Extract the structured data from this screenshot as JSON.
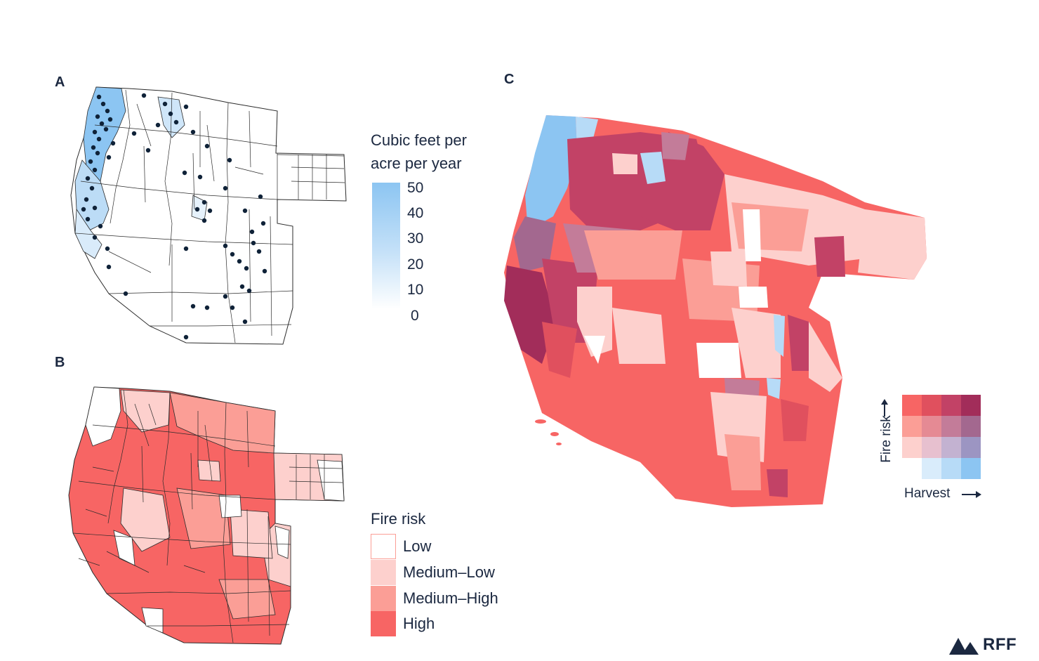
{
  "panels": {
    "a": {
      "label": "A"
    },
    "b": {
      "label": "B"
    },
    "c": {
      "label": "C"
    }
  },
  "harvest_legend": {
    "title_line1": "Cubic feet per",
    "title_line2": "acre per year",
    "ticks": [
      "50",
      "40",
      "30",
      "20",
      "10",
      "0"
    ],
    "gradient_colors": [
      "#8cc5f2",
      "#ffffff"
    ]
  },
  "fire_legend": {
    "title": "Fire risk",
    "categories": [
      {
        "label": "Low",
        "color": "#ffffff"
      },
      {
        "label": "Medium–Low",
        "color": "#fdd0cd"
      },
      {
        "label": "Medium–High",
        "color": "#fb9e96"
      },
      {
        "label": "High",
        "color": "#f76564"
      }
    ]
  },
  "bivariate_legend": {
    "y_axis": "Fire risk",
    "x_axis": "Harvest",
    "arrow_icon": "arrow-icon",
    "grid_colors": [
      [
        "#f76564",
        "#e0505e",
        "#c24266",
        "#a22d5a"
      ],
      [
        "#fb9e96",
        "#e58a94",
        "#c37c99",
        "#a3688f"
      ],
      [
        "#fdd0cd",
        "#e7c0cf",
        "#c3b2d1",
        "#9c95c2"
      ],
      [
        "#ffffff",
        "#d9ecfb",
        "#b7dbf7",
        "#8cc5f2"
      ]
    ]
  },
  "map_colors": {
    "outline": "#2b2b2b",
    "dot": "#0f2238",
    "harvest_blue": "#8cc5f2",
    "light_blue": "#cfe6f9"
  },
  "logo": {
    "text": "RFF",
    "icon": "mountain-icon",
    "color": "#1b2840"
  }
}
